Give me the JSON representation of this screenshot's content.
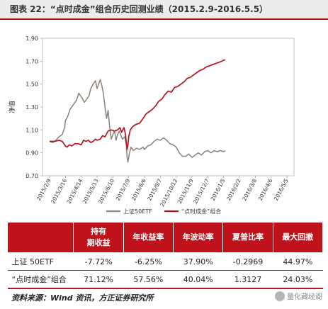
{
  "title": "图表 22：“点时成金”组合历史回测业绩（2015.2.9-2016.5.5）",
  "chart_data": {
    "type": "line",
    "ylabel": "净值",
    "ylim": [
      0.7,
      1.9
    ],
    "yticks": [
      "0.70",
      "0.90",
      "1.10",
      "1.30",
      "1.50",
      "1.70",
      "1.90"
    ],
    "ytick_values": [
      0.7,
      0.9,
      1.1,
      1.3,
      1.5,
      1.7,
      1.9
    ],
    "xticks": [
      "2015/2/9",
      "2015/3/16",
      "2015/4/14",
      "2015/5/13",
      "2015/6/10",
      "2015/7/9",
      "2015/8/6",
      "2015/9/7",
      "2015/10/12",
      "2015/11/9",
      "2015/12/7",
      "2016/1/5",
      "2016/2/2",
      "2016/3/8",
      "2016/4/6",
      "2016/5/5"
    ],
    "legend": {
      "position": "bottom"
    },
    "series": [
      {
        "name": "上证50ETF",
        "color": "#8a8378",
        "points": [
          [
            0,
            1.0
          ],
          [
            0.2,
            0.99
          ],
          [
            0.4,
            1.01
          ],
          [
            0.6,
            1.04
          ],
          [
            0.8,
            1.06
          ],
          [
            0.95,
            1.12
          ],
          [
            1.0,
            1.18
          ],
          [
            1.15,
            1.22
          ],
          [
            1.3,
            1.28
          ],
          [
            1.5,
            1.32
          ],
          [
            1.7,
            1.36
          ],
          [
            1.85,
            1.42
          ],
          [
            1.95,
            1.4
          ],
          [
            2.05,
            1.38
          ],
          [
            2.2,
            1.34
          ],
          [
            2.35,
            1.37
          ],
          [
            2.5,
            1.4
          ],
          [
            2.6,
            1.46
          ],
          [
            2.75,
            1.5
          ],
          [
            2.9,
            1.53
          ],
          [
            3.0,
            1.46
          ],
          [
            3.1,
            1.5
          ],
          [
            3.2,
            1.54
          ],
          [
            3.3,
            1.49
          ],
          [
            3.4,
            1.42
          ],
          [
            3.5,
            1.3
          ],
          [
            3.6,
            1.2
          ],
          [
            3.7,
            1.27
          ],
          [
            3.8,
            1.12
          ],
          [
            3.9,
            1.02
          ],
          [
            4.0,
            1.06
          ],
          [
            4.1,
            1.09
          ],
          [
            4.2,
            1.01
          ],
          [
            4.3,
            1.06
          ],
          [
            4.4,
            1.09
          ],
          [
            4.6,
            1.02
          ],
          [
            4.75,
            1.04
          ],
          [
            4.85,
            0.97
          ],
          [
            4.9,
            0.86
          ],
          [
            4.95,
            0.82
          ],
          [
            5.05,
            0.9
          ],
          [
            5.15,
            0.95
          ],
          [
            5.3,
            0.92
          ],
          [
            5.5,
            0.94
          ],
          [
            5.7,
            0.93
          ],
          [
            5.9,
            0.95
          ],
          [
            6.0,
            0.93
          ],
          [
            6.2,
            0.96
          ],
          [
            6.4,
            0.97
          ],
          [
            6.6,
            1.0
          ],
          [
            6.8,
            1.02
          ],
          [
            7.0,
            1.01
          ],
          [
            7.2,
            1.03
          ],
          [
            7.4,
            1.01
          ],
          [
            7.6,
            0.98
          ],
          [
            7.8,
            0.97
          ],
          [
            8.0,
            0.95
          ],
          [
            8.2,
            0.9
          ],
          [
            8.4,
            0.87
          ],
          [
            8.6,
            0.87
          ],
          [
            8.8,
            0.89
          ],
          [
            9.0,
            0.86
          ],
          [
            9.2,
            0.88
          ],
          [
            9.4,
            0.9
          ],
          [
            9.6,
            0.88
          ],
          [
            9.8,
            0.91
          ],
          [
            10.0,
            0.92
          ],
          [
            10.2,
            0.9
          ],
          [
            10.4,
            0.92
          ],
          [
            10.6,
            0.91
          ],
          [
            10.8,
            0.92
          ],
          [
            11.0,
            0.91
          ],
          [
            11.1,
            0.92
          ]
        ]
      },
      {
        "name": "“点时成金”组合",
        "color": "#b3141c",
        "points": [
          [
            0,
            1.0
          ],
          [
            0.3,
            1.0
          ],
          [
            0.6,
            1.01
          ],
          [
            0.8,
            1.0
          ],
          [
            0.9,
            0.98
          ],
          [
            1.0,
            0.96
          ],
          [
            1.1,
            0.95
          ],
          [
            1.25,
            0.97
          ],
          [
            1.4,
            0.96
          ],
          [
            1.6,
            0.98
          ],
          [
            1.8,
            0.98
          ],
          [
            2.0,
            0.97
          ],
          [
            2.15,
            1.01
          ],
          [
            2.3,
            1.0
          ],
          [
            2.45,
            1.01
          ],
          [
            2.6,
            0.99
          ],
          [
            2.75,
            1.0
          ],
          [
            2.9,
            1.02
          ],
          [
            3.0,
            1.01
          ],
          [
            3.2,
            1.02
          ],
          [
            3.35,
            1.05
          ],
          [
            3.5,
            1.04
          ],
          [
            3.7,
            1.09
          ],
          [
            3.9,
            1.1
          ],
          [
            4.1,
            1.09
          ],
          [
            4.3,
            1.1
          ],
          [
            4.45,
            1.12
          ],
          [
            4.55,
            1.08
          ],
          [
            4.7,
            1.12
          ],
          [
            4.8,
            1.06
          ],
          [
            4.85,
            0.99
          ],
          [
            4.9,
            0.93
          ],
          [
            4.95,
            0.97
          ],
          [
            5.0,
            1.04
          ],
          [
            5.1,
            1.1
          ],
          [
            5.2,
            1.12
          ],
          [
            5.35,
            1.14
          ],
          [
            5.5,
            1.15
          ],
          [
            5.7,
            1.16
          ],
          [
            5.9,
            1.2
          ],
          [
            6.1,
            1.24
          ],
          [
            6.3,
            1.26
          ],
          [
            6.5,
            1.28
          ],
          [
            6.7,
            1.31
          ],
          [
            6.9,
            1.35
          ],
          [
            7.1,
            1.37
          ],
          [
            7.3,
            1.41
          ],
          [
            7.5,
            1.44
          ],
          [
            7.7,
            1.43
          ],
          [
            7.9,
            1.47
          ],
          [
            8.1,
            1.48
          ],
          [
            8.3,
            1.5
          ],
          [
            8.5,
            1.52
          ],
          [
            8.7,
            1.55
          ],
          [
            8.9,
            1.56
          ],
          [
            9.1,
            1.58
          ],
          [
            9.3,
            1.6
          ],
          [
            9.5,
            1.62
          ],
          [
            9.7,
            1.63
          ],
          [
            9.9,
            1.65
          ],
          [
            10.1,
            1.66
          ],
          [
            10.3,
            1.67
          ],
          [
            10.5,
            1.68
          ],
          [
            10.7,
            1.69
          ],
          [
            10.9,
            1.7
          ],
          [
            11.0,
            1.71
          ],
          [
            11.1,
            1.71
          ]
        ]
      }
    ]
  },
  "table": {
    "headers": [
      "",
      "持有\n期收益",
      "年收益率",
      "年波动率",
      "夏普比率",
      "最大回撤"
    ],
    "rows": [
      [
        "上证 50ETF",
        "-7.72%",
        "-6.25%",
        "37.90%",
        "-0.2969",
        "44.97%"
      ],
      [
        "“点时成金”组合",
        "71.12%",
        "57.56%",
        "40.04%",
        "1.3127",
        "24.03%"
      ]
    ]
  },
  "source": "资料来源：Wind 资讯，方正证券研究所",
  "watermark": "量化藏经阁"
}
